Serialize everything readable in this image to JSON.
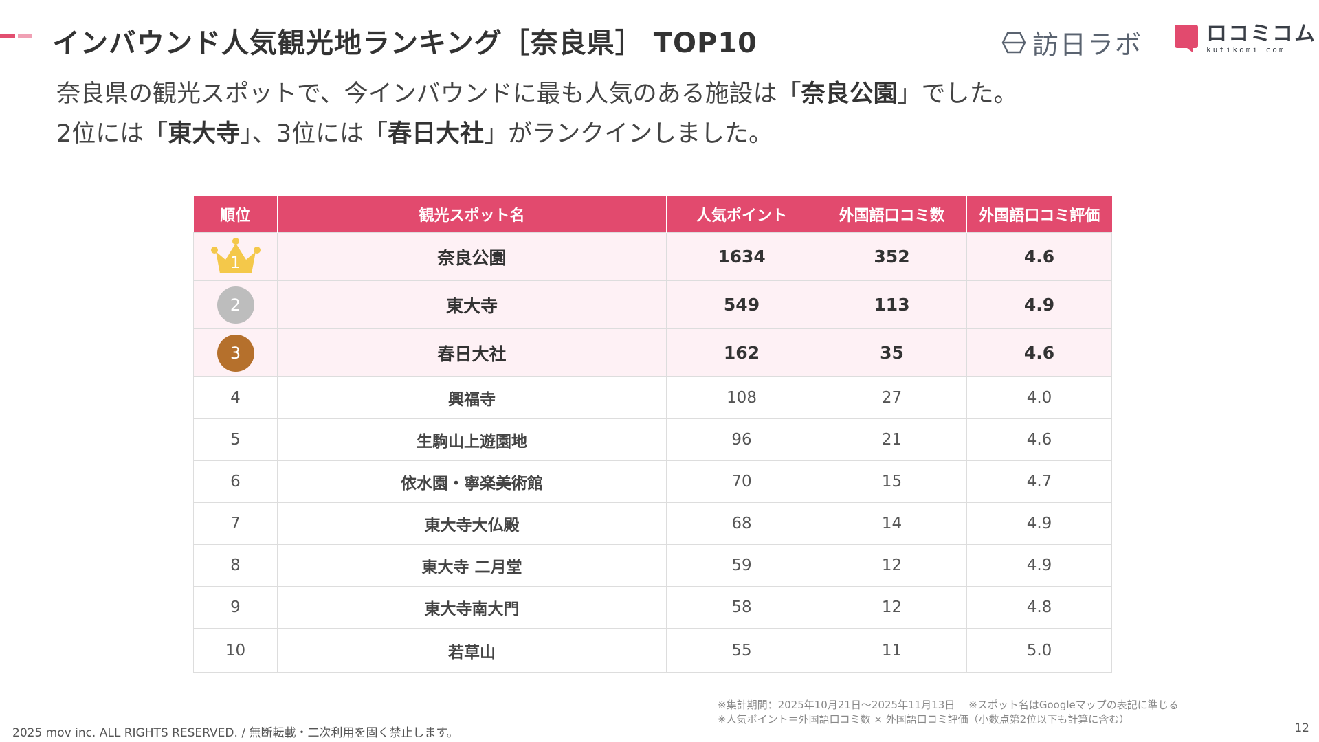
{
  "header": {
    "title": "インバウンド人気観光地ランキング［奈良県］ TOP10",
    "logo_houni": "訪日ラボ",
    "logo_kutikomi": "ロコミコム",
    "logo_kutikomi_sub": "kutikomi com"
  },
  "intro": {
    "line1_a": "奈良県の観光スポットで、今インバウンドに最も人気のある施設は「",
    "line1_b": "奈良公園",
    "line1_c": "」でした。",
    "line2_a": "2位には「",
    "line2_b": "東大寺",
    "line2_c": "」、3位には「",
    "line2_d": "春日大社",
    "line2_e": "」がランクインしました。"
  },
  "colors": {
    "accent": "#e24a6e",
    "top_row_bg": "#fef1f5",
    "gold": "#f4c84a",
    "silver": "#bdbdbd",
    "bronze": "#b5702c"
  },
  "table": {
    "headers": [
      "順位",
      "観光スポット名",
      "人気ポイント",
      "外国語口コミ数",
      "外国語口コミ評価"
    ],
    "rows": [
      {
        "rank": "1",
        "name": "奈良公園",
        "points": "1634",
        "reviews": "352",
        "rating": "4.6"
      },
      {
        "rank": "2",
        "name": "東大寺",
        "points": "549",
        "reviews": "113",
        "rating": "4.9"
      },
      {
        "rank": "3",
        "name": "春日大社",
        "points": "162",
        "reviews": "35",
        "rating": "4.6"
      },
      {
        "rank": "4",
        "name": "興福寺",
        "points": "108",
        "reviews": "27",
        "rating": "4.0"
      },
      {
        "rank": "5",
        "name": "生駒山上遊園地",
        "points": "96",
        "reviews": "21",
        "rating": "4.6"
      },
      {
        "rank": "6",
        "name": "依水園・寧楽美術館",
        "points": "70",
        "reviews": "15",
        "rating": "4.7"
      },
      {
        "rank": "7",
        "name": "東大寺大仏殿",
        "points": "68",
        "reviews": "14",
        "rating": "4.9"
      },
      {
        "rank": "8",
        "name": "東大寺 二月堂",
        "points": "59",
        "reviews": "12",
        "rating": "4.9"
      },
      {
        "rank": "9",
        "name": "東大寺南大門",
        "points": "58",
        "reviews": "12",
        "rating": "4.8"
      },
      {
        "rank": "10",
        "name": "若草山",
        "points": "55",
        "reviews": "11",
        "rating": "5.0"
      }
    ]
  },
  "notes": {
    "line1_a": "※集計期間：2025年10月21日〜2025年11月13日",
    "line1_b": "※スポット名はGoogleマップの表記に準じる",
    "line2": "※人気ポイント＝外国語口コミ数 × 外国語口コミ評価（小数点第2位以下も計算に含む）"
  },
  "footer": {
    "copyright": "2025 mov inc. ALL RIGHTS RESERVED. / 無断転載・二次利用を固く禁止します。",
    "page_number": "12"
  }
}
